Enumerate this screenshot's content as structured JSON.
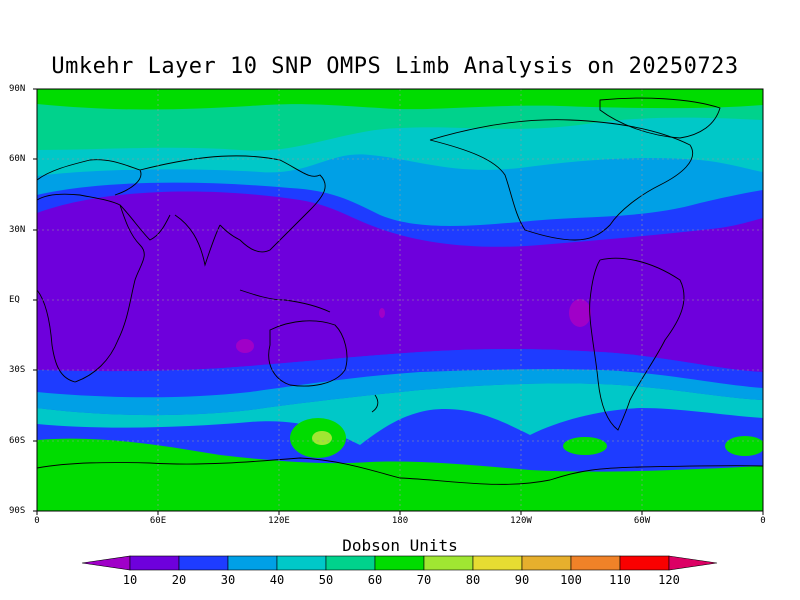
{
  "title": "Umkehr Layer 10 SNP OMPS Limb Analysis on 20250723",
  "lat_labels": [
    "90N",
    "60N",
    "30N",
    "EQ",
    "30S",
    "60S",
    "90S"
  ],
  "lon_labels": [
    "0",
    "60E",
    "120E",
    "180",
    "120W",
    "60W",
    "0"
  ],
  "colorbar": {
    "title": "Dobson Units",
    "ticks": [
      "10",
      "20",
      "30",
      "40",
      "50",
      "60",
      "70",
      "80",
      "90",
      "100",
      "110",
      "120"
    ],
    "colors": [
      "#a000c8",
      "#6e00dc",
      "#1e3cff",
      "#00a0e6",
      "#00c8c8",
      "#00d28c",
      "#00dc00",
      "#a0e632",
      "#e6dc32",
      "#e6af2d",
      "#f08228",
      "#fa0000",
      "#dc0064"
    ]
  },
  "chart_data": {
    "type": "heatmap",
    "title": "Umkehr Layer 10 SNP OMPS Limb Analysis on 20250723",
    "units": "Dobson Units",
    "xlim": [
      0,
      360
    ],
    "ylim": [
      -90,
      90
    ],
    "bands_by_latitude": [
      {
        "lat_range": [
          80,
          90
        ],
        "level": "60-70",
        "color": "#00dc00"
      },
      {
        "lat_range": [
          60,
          80
        ],
        "level": "50-60",
        "color": "#00d28c"
      },
      {
        "lat_range": [
          50,
          60
        ],
        "level": "40-50",
        "color": "#00c8c8"
      },
      {
        "lat_range": [
          42,
          50
        ],
        "level": "30-40",
        "color": "#00a0e6"
      },
      {
        "lat_range": [
          35,
          42
        ],
        "level": "20-30",
        "color": "#1e3cff"
      },
      {
        "lat_range": [
          -28,
          35
        ],
        "level": "10-20",
        "color": "#6e00dc"
      },
      {
        "lat_range": [
          -35,
          -28
        ],
        "level": "20-30",
        "color": "#1e3cff"
      },
      {
        "lat_range": [
          -42,
          -35
        ],
        "level": "30-40",
        "color": "#00a0e6"
      },
      {
        "lat_range": [
          -52,
          -42
        ],
        "level": "40-50",
        "color": "#00c8c8"
      },
      {
        "lat_range": [
          -65,
          -52
        ],
        "level": "50-60",
        "color": "#00d28c"
      },
      {
        "lat_range": [
          -90,
          -65
        ],
        "level": "60-70",
        "color": "#00dc00"
      }
    ],
    "features": [
      {
        "name": "low-ozone patch",
        "lon": 90,
        "lat": -20,
        "level": "<10"
      },
      {
        "name": "low-ozone patch",
        "lon": 268,
        "lat": -6,
        "level": "<10"
      },
      {
        "name": "high-ozone patch",
        "lon": 140,
        "lat": -57,
        "level": "70-80"
      }
    ]
  }
}
